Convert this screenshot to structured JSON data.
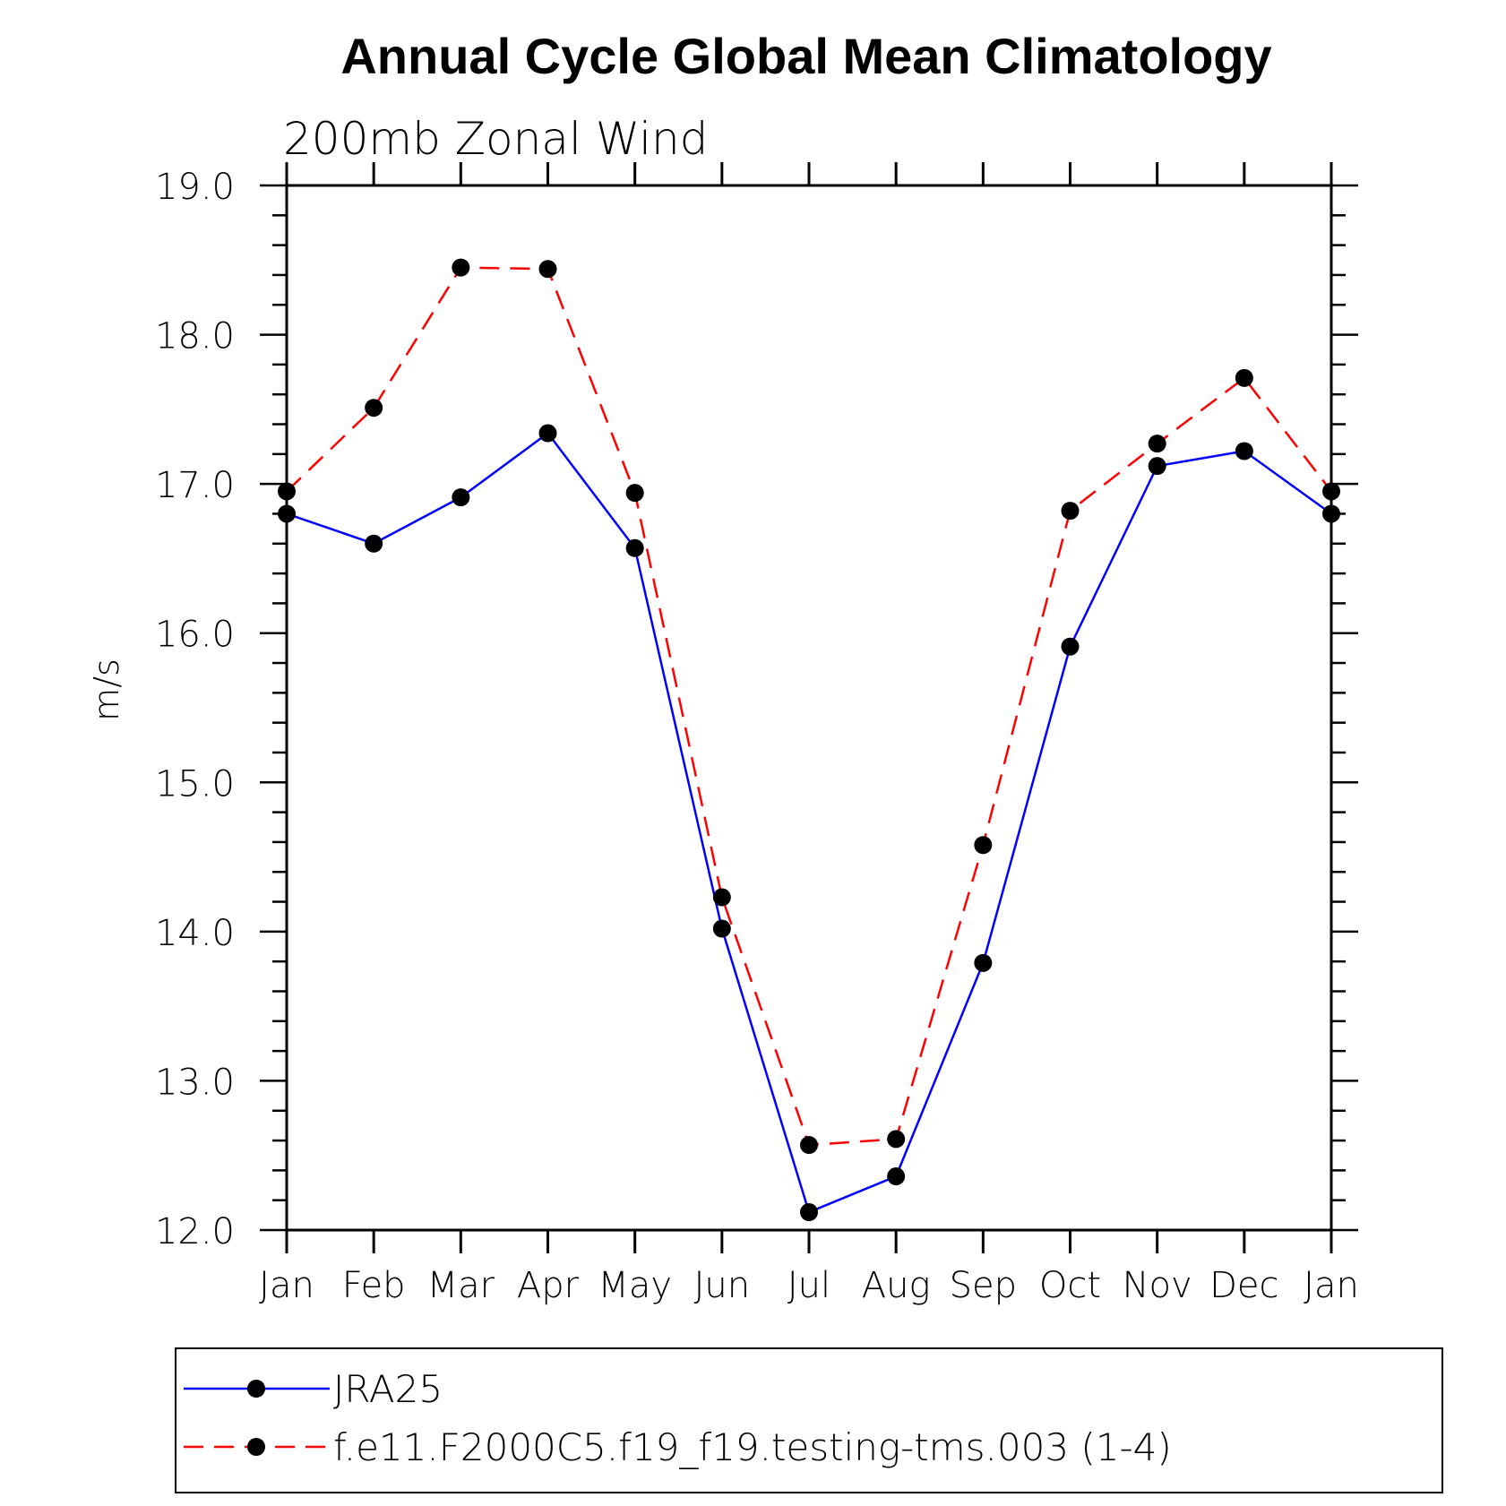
{
  "chart_data": {
    "type": "line",
    "title": "Annual Cycle Global Mean Climatology",
    "subtitle": "200mb Zonal Wind",
    "ylabel": "m/s",
    "xlabel": "",
    "categories": [
      "Jan",
      "Feb",
      "Mar",
      "Apr",
      "May",
      "Jun",
      "Jul",
      "Aug",
      "Sep",
      "Oct",
      "Nov",
      "Dec",
      "Jan"
    ],
    "ylim": [
      12.0,
      19.0
    ],
    "yticks": [
      "12.0",
      "13.0",
      "14.0",
      "15.0",
      "16.0",
      "17.0",
      "18.0",
      "19.0"
    ],
    "grid": false,
    "legend_position": "bottom",
    "series": [
      {
        "name": "JRA25",
        "color": "#0000ff",
        "line_style": "solid",
        "marker": "filled-circle",
        "values": [
          16.8,
          16.6,
          16.91,
          17.34,
          16.57,
          14.02,
          12.12,
          12.36,
          13.79,
          15.91,
          17.12,
          17.22,
          16.8
        ]
      },
      {
        "name": "f.e11.F2000C5.f19_f19.testing-tms.003 (1-4)",
        "color": "#ff0000",
        "line_style": "dashed",
        "marker": "filled-circle",
        "values": [
          16.95,
          17.51,
          18.45,
          18.44,
          16.94,
          14.23,
          12.57,
          12.61,
          14.58,
          16.82,
          17.27,
          17.71,
          16.95
        ]
      }
    ]
  }
}
